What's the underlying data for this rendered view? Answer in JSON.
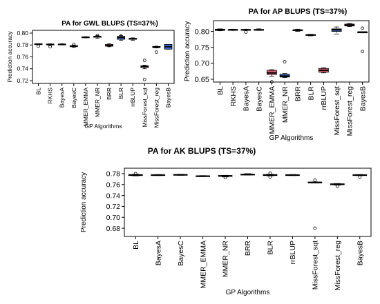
{
  "chart_data": [
    {
      "type": "box",
      "title": "PA for GWL BLUPS (TS=37%)",
      "xlabel": "GP Algorithms",
      "ylabel": "Prediction accuracy",
      "ylim": [
        0.72,
        0.8
      ],
      "yticks": [
        "0.72",
        "0.74",
        "0.76",
        "0.78",
        "0.80"
      ],
      "categories": [
        "BL",
        "RKHS",
        "BayesA",
        "BayesC",
        "MMER_EMMA",
        "MMER_NR",
        "BRR",
        "BLR",
        "rrBLUP",
        "MissForest_sqt",
        "MissForest_reg",
        "BayesB"
      ],
      "boxes": [
        {
          "q1": 0.781,
          "median": 0.7815,
          "q3": 0.782,
          "min": 0.781,
          "max": 0.782,
          "outliers": [
            0.778
          ],
          "color": "#ffffff"
        },
        {
          "q1": 0.7805,
          "median": 0.781,
          "q3": 0.7815,
          "min": 0.779,
          "max": 0.782,
          "outliers": [
            0.777
          ],
          "color": "#ffffff"
        },
        {
          "q1": 0.7805,
          "median": 0.781,
          "q3": 0.7815,
          "min": 0.78,
          "max": 0.782,
          "outliers": [],
          "color": "#ffffff"
        },
        {
          "q1": 0.777,
          "median": 0.778,
          "q3": 0.779,
          "min": 0.776,
          "max": 0.78,
          "outliers": [
            0.781
          ],
          "color": "#3a6fd8"
        },
        {
          "q1": 0.7925,
          "median": 0.793,
          "q3": 0.7935,
          "min": 0.792,
          "max": 0.794,
          "outliers": [],
          "color": "#ffffff"
        },
        {
          "q1": 0.793,
          "median": 0.794,
          "q3": 0.7945,
          "min": 0.791,
          "max": 0.796,
          "outliers": [
            0.796
          ],
          "color": "#ffffff"
        },
        {
          "q1": 0.778,
          "median": 0.779,
          "q3": 0.781,
          "min": 0.777,
          "max": 0.782,
          "outliers": [],
          "color": "#e06070"
        },
        {
          "q1": 0.7895,
          "median": 0.7925,
          "q3": 0.7945,
          "min": 0.788,
          "max": 0.796,
          "outliers": [
            0.795
          ],
          "color": "#3a6fd8"
        },
        {
          "q1": 0.7895,
          "median": 0.7905,
          "q3": 0.791,
          "min": 0.788,
          "max": 0.792,
          "outliers": [],
          "color": "#ffffff"
        },
        {
          "q1": 0.742,
          "median": 0.744,
          "q3": 0.745,
          "min": 0.74,
          "max": 0.746,
          "outliers": [
            0.754,
            0.722
          ],
          "color": "#e06070"
        },
        {
          "q1": 0.7755,
          "median": 0.7765,
          "q3": 0.7775,
          "min": 0.775,
          "max": 0.778,
          "outliers": [
            0.768
          ],
          "color": "#e06070"
        },
        {
          "q1": 0.773,
          "median": 0.777,
          "q3": 0.781,
          "min": 0.773,
          "max": 0.781,
          "outliers": [],
          "color": "#3a6fd8"
        }
      ]
    },
    {
      "type": "box",
      "title": "PA for AP BLUPS (TS=37%)",
      "xlabel": "GP Algorithms",
      "ylabel": "Prediction accuracy",
      "ylim": [
        0.65,
        0.825
      ],
      "yticks": [
        "0.65",
        "0.70",
        "0.75",
        "0.80"
      ],
      "categories": [
        "BL",
        "RKHS",
        "BayesA",
        "BayesC",
        "MMER_EMMA",
        "MMER_NR",
        "BRR",
        "BLR",
        "rrBLUP",
        "MissForest_sqt",
        "MissForest_reg",
        "BayesB"
      ],
      "boxes": [
        {
          "q1": 0.803,
          "median": 0.805,
          "q3": 0.807,
          "min": 0.802,
          "max": 0.808,
          "outliers": [],
          "color": "#e06070"
        },
        {
          "q1": 0.804,
          "median": 0.805,
          "q3": 0.806,
          "min": 0.803,
          "max": 0.807,
          "outliers": [],
          "color": "#ffffff"
        },
        {
          "q1": 0.804,
          "median": 0.805,
          "q3": 0.806,
          "min": 0.803,
          "max": 0.807,
          "outliers": [
            0.798
          ],
          "color": "#ffffff"
        },
        {
          "q1": 0.804,
          "median": 0.805,
          "q3": 0.806,
          "min": 0.803,
          "max": 0.808,
          "outliers": [],
          "color": "#ffffff"
        },
        {
          "q1": 0.665,
          "median": 0.67,
          "q3": 0.678,
          "min": 0.66,
          "max": 0.68,
          "outliers": [
            0.642
          ],
          "color": "#e06070"
        },
        {
          "q1": 0.657,
          "median": 0.66,
          "q3": 0.666,
          "min": 0.655,
          "max": 0.668,
          "outliers": [
            0.705
          ],
          "color": "#3a6fd8"
        },
        {
          "q1": 0.802,
          "median": 0.804,
          "q3": 0.805,
          "min": 0.8,
          "max": 0.807,
          "outliers": [],
          "color": "#ffffff"
        },
        {
          "q1": 0.788,
          "median": 0.789,
          "q3": 0.79,
          "min": 0.786,
          "max": 0.791,
          "outliers": [],
          "color": "#ffffff"
        },
        {
          "q1": 0.672,
          "median": 0.678,
          "q3": 0.684,
          "min": 0.67,
          "max": 0.686,
          "outliers": [],
          "color": "#e06070"
        },
        {
          "q1": 0.8,
          "median": 0.805,
          "q3": 0.808,
          "min": 0.792,
          "max": 0.814,
          "outliers": [],
          "color": "#3a6fd8"
        },
        {
          "q1": 0.817,
          "median": 0.82,
          "q3": 0.823,
          "min": 0.815,
          "max": 0.825,
          "outliers": [],
          "color": "#e06070"
        },
        {
          "q1": 0.798,
          "median": 0.798,
          "q3": 0.798,
          "min": 0.798,
          "max": 0.798,
          "outliers": [
            0.81,
            0.737
          ],
          "color": "#ffffff"
        }
      ]
    },
    {
      "type": "box",
      "title": "PA for AK BLUPS (TS=37%)",
      "xlabel": "GP Algorithms",
      "ylabel": "Prediction accuracy",
      "ylim": [
        0.67,
        0.785
      ],
      "yticks": [
        "0.68",
        "0.70",
        "0.72",
        "0.74",
        "0.76",
        "0.78"
      ],
      "categories": [
        "BL",
        "BayesA",
        "BayesC",
        "MMER_EMMA",
        "MMER_NR",
        "BRR",
        "BLR",
        "rrBLUP",
        "MissForest_sqt",
        "MissForest_reg",
        "BayesB"
      ],
      "boxes": [
        {
          "q1": 0.7765,
          "median": 0.7775,
          "q3": 0.7785,
          "min": 0.776,
          "max": 0.779,
          "outliers": [
            0.78
          ],
          "color": "#ffffff"
        },
        {
          "q1": 0.777,
          "median": 0.7775,
          "q3": 0.778,
          "min": 0.7765,
          "max": 0.7785,
          "outliers": [],
          "color": "#ffffff"
        },
        {
          "q1": 0.7775,
          "median": 0.778,
          "q3": 0.7785,
          "min": 0.777,
          "max": 0.779,
          "outliers": [],
          "color": "#ffffff"
        },
        {
          "q1": 0.775,
          "median": 0.7755,
          "q3": 0.776,
          "min": 0.7745,
          "max": 0.7765,
          "outliers": [],
          "color": "#ffffff"
        },
        {
          "q1": 0.7755,
          "median": 0.776,
          "q3": 0.7765,
          "min": 0.774,
          "max": 0.777,
          "outliers": [
            0.773
          ],
          "color": "#ffffff"
        },
        {
          "q1": 0.778,
          "median": 0.7785,
          "q3": 0.779,
          "min": 0.7775,
          "max": 0.78,
          "outliers": [],
          "color": "#ffffff"
        },
        {
          "q1": 0.7765,
          "median": 0.7775,
          "q3": 0.7785,
          "min": 0.776,
          "max": 0.779,
          "outliers": [
            0.781,
            0.774
          ],
          "color": "#ffffff"
        },
        {
          "q1": 0.777,
          "median": 0.7775,
          "q3": 0.778,
          "min": 0.7765,
          "max": 0.7785,
          "outliers": [],
          "color": "#ffffff"
        },
        {
          "q1": 0.7635,
          "median": 0.764,
          "q3": 0.7645,
          "min": 0.763,
          "max": 0.765,
          "outliers": [
            0.768,
            0.68
          ],
          "color": "#ffffff"
        },
        {
          "q1": 0.76,
          "median": 0.7605,
          "q3": 0.7615,
          "min": 0.759,
          "max": 0.762,
          "outliers": [
            0.757
          ],
          "color": "#ffffff"
        },
        {
          "q1": 0.777,
          "median": 0.7775,
          "q3": 0.778,
          "min": 0.7765,
          "max": 0.7785,
          "outliers": [
            0.774
          ],
          "color": "#ffffff"
        }
      ]
    }
  ]
}
